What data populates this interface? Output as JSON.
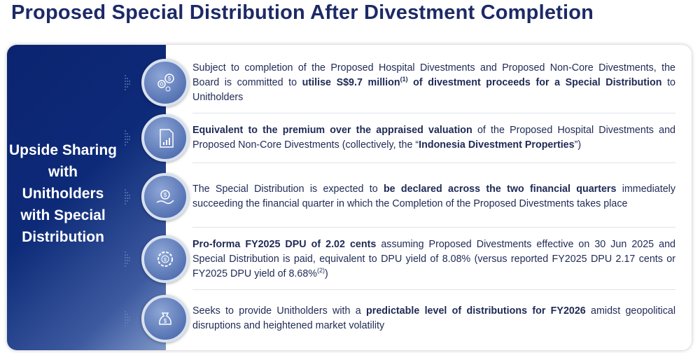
{
  "title": "Proposed Special Distribution After Divestment Completion",
  "panel_heading": "Upside Sharing with Unitholders with Special Distribution",
  "colors": {
    "title": "#1c2a66",
    "panel": "#0d2a78",
    "text": "#1f2a55"
  },
  "items": [
    {
      "icon": "gear-dollar-icon",
      "segments": [
        {
          "t": "Subject to completion of the Proposed Hospital Divestments and Proposed Non-Core Divestments, the Board is committed to "
        },
        {
          "t": "utilise S$9.7 million",
          "b": true
        },
        {
          "t": "(1)",
          "b": true,
          "sup": true
        },
        {
          "t": " of divestment proceeds for a Special Distribution",
          "b": true
        },
        {
          "t": " to Unitholders"
        }
      ]
    },
    {
      "icon": "valuation-document-icon",
      "segments": [
        {
          "t": "Equivalent to the premium over the appraised valuation",
          "b": true
        },
        {
          "t": " of the Proposed Hospital Divestments and Proposed Non-Core Divestments (collectively, the “"
        },
        {
          "t": "Indonesia Divestment Properties",
          "b": true
        },
        {
          "t": "”)"
        }
      ]
    },
    {
      "icon": "hand-money-icon",
      "segments": [
        {
          "t": "The Special Distribution is expected to "
        },
        {
          "t": "be declared across the two financial quarters",
          "b": true
        },
        {
          "t": " immediately succeeding the financial quarter in which the Completion of the Proposed Divestments takes place"
        }
      ]
    },
    {
      "icon": "gear-coin-icon",
      "segments": [
        {
          "t": "Pro-forma FY2025 DPU of 2.02 cents",
          "b": true
        },
        {
          "t": " assuming Proposed Divestments effective on 30 Jun 2025 and Special Distribution is paid, equivalent to DPU yield of 8.08% (versus reported FY2025 DPU 2.17 cents or FY2025 DPU yield of 8.68%"
        },
        {
          "t": "(2)",
          "sup": true
        },
        {
          "t": ")"
        }
      ]
    },
    {
      "icon": "money-bag-chart-icon",
      "segments": [
        {
          "t": "Seeks to provide Unitholders with a "
        },
        {
          "t": "predictable level of distributions for FY2026",
          "b": true
        },
        {
          "t": " amidst geopolitical disruptions and heightened market volatility"
        }
      ]
    }
  ]
}
